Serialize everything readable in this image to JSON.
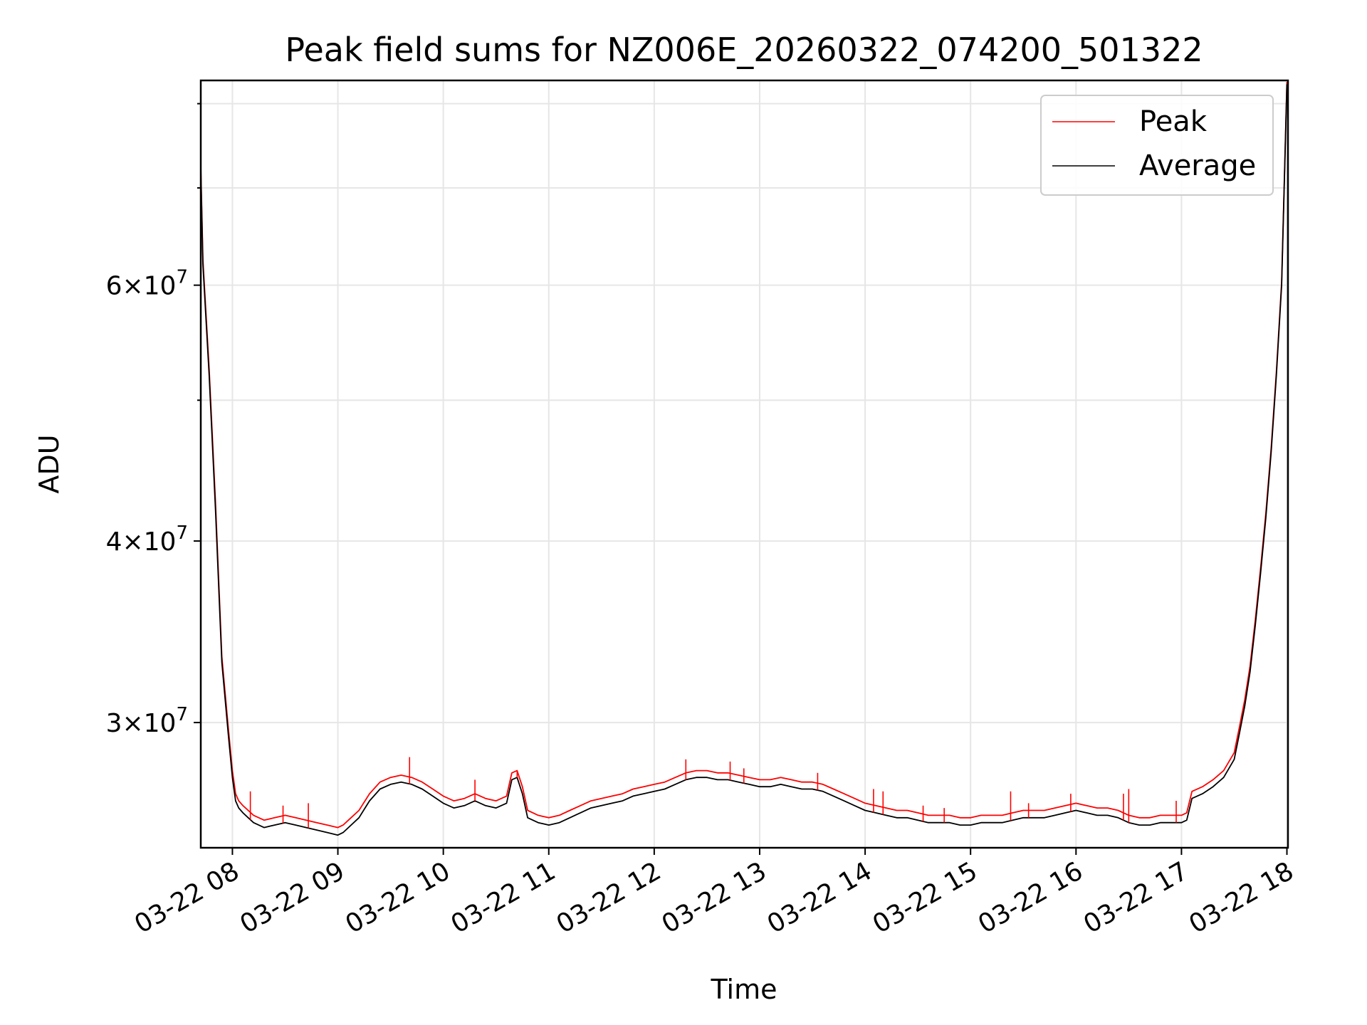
{
  "chart_data": {
    "type": "line",
    "title": "Peak field sums for NZ006E_20260322_074200_501322",
    "xlabel": "Time",
    "ylabel": "ADU",
    "x_ticks": [
      "03-22 08",
      "03-22 09",
      "03-22 10",
      "03-22 11",
      "03-22 12",
      "03-22 13",
      "03-22 14",
      "03-22 15",
      "03-22 16",
      "03-22 17",
      "03-22 18"
    ],
    "x_tick_hours": [
      8,
      9,
      10,
      11,
      12,
      13,
      14,
      15,
      16,
      17,
      18
    ],
    "xlim_hours": [
      7.7,
      18.01
    ],
    "y_scale": "log",
    "ylim": [
      24600000,
      83000000
    ],
    "y_major_ticks": [
      {
        "value": 30000000,
        "mantissa": "3",
        "exponent": "7"
      },
      {
        "value": 40000000,
        "mantissa": "4",
        "exponent": "7"
      },
      {
        "value": 60000000,
        "mantissa": "6",
        "exponent": "7"
      }
    ],
    "y_minor_ticks": [
      50000000,
      70000000,
      80000000
    ],
    "grid": true,
    "legend": {
      "placement": "top-right",
      "entries": [
        {
          "name": "Peak",
          "color": "#ff0000"
        },
        {
          "name": "Average",
          "color": "#000000"
        }
      ]
    },
    "series": [
      {
        "name": "Average",
        "color": "#000000",
        "x_hours": [
          7.7,
          7.72,
          7.78,
          7.84,
          7.9,
          7.96,
          8.0,
          8.03,
          8.06,
          8.1,
          8.15,
          8.2,
          8.3,
          8.4,
          8.5,
          8.6,
          8.7,
          8.8,
          8.9,
          9.0,
          9.05,
          9.1,
          9.2,
          9.3,
          9.4,
          9.5,
          9.6,
          9.7,
          9.8,
          9.9,
          10.0,
          10.1,
          10.2,
          10.3,
          10.4,
          10.5,
          10.6,
          10.65,
          10.7,
          10.75,
          10.8,
          10.9,
          11.0,
          11.1,
          11.2,
          11.3,
          11.4,
          11.5,
          11.6,
          11.7,
          11.8,
          11.9,
          12.0,
          12.1,
          12.2,
          12.3,
          12.4,
          12.5,
          12.6,
          12.7,
          12.8,
          12.9,
          13.0,
          13.1,
          13.2,
          13.3,
          13.4,
          13.5,
          13.6,
          13.7,
          13.8,
          13.9,
          14.0,
          14.1,
          14.2,
          14.3,
          14.4,
          14.5,
          14.6,
          14.7,
          14.8,
          14.9,
          15.0,
          15.1,
          15.2,
          15.3,
          15.4,
          15.5,
          15.6,
          15.7,
          15.8,
          15.9,
          16.0,
          16.1,
          16.2,
          16.3,
          16.4,
          16.5,
          16.6,
          16.7,
          16.8,
          16.9,
          17.0,
          17.05,
          17.1,
          17.2,
          17.3,
          17.4,
          17.5,
          17.55,
          17.6,
          17.65,
          17.7,
          17.75,
          17.8,
          17.85,
          17.9,
          17.95,
          18.0
        ],
        "values": [
          72000000,
          62000000,
          52000000,
          42000000,
          33000000,
          29500000,
          27500000,
          26500000,
          26200000,
          26000000,
          25800000,
          25600000,
          25400000,
          25500000,
          25600000,
          25500000,
          25400000,
          25300000,
          25200000,
          25100000,
          25200000,
          25400000,
          25800000,
          26500000,
          27000000,
          27200000,
          27300000,
          27200000,
          27000000,
          26700000,
          26400000,
          26200000,
          26300000,
          26500000,
          26300000,
          26200000,
          26400000,
          27400000,
          27500000,
          26800000,
          25800000,
          25600000,
          25500000,
          25600000,
          25800000,
          26000000,
          26200000,
          26300000,
          26400000,
          26500000,
          26700000,
          26800000,
          26900000,
          27000000,
          27200000,
          27400000,
          27500000,
          27500000,
          27400000,
          27400000,
          27300000,
          27200000,
          27100000,
          27100000,
          27200000,
          27100000,
          27000000,
          27000000,
          26900000,
          26700000,
          26500000,
          26300000,
          26100000,
          26000000,
          25900000,
          25800000,
          25800000,
          25700000,
          25600000,
          25600000,
          25600000,
          25500000,
          25500000,
          25600000,
          25600000,
          25600000,
          25700000,
          25800000,
          25800000,
          25800000,
          25900000,
          26000000,
          26100000,
          26000000,
          25900000,
          25900000,
          25800000,
          25600000,
          25500000,
          25500000,
          25600000,
          25600000,
          25600000,
          25700000,
          26600000,
          26800000,
          27100000,
          27500000,
          28300000,
          29500000,
          30800000,
          32500000,
          35000000,
          38000000,
          41500000,
          46000000,
          52000000,
          60000000,
          82500000
        ]
      },
      {
        "name": "Peak",
        "color": "#ff0000",
        "x_hours": [
          7.7,
          7.72,
          7.78,
          7.84,
          7.9,
          7.96,
          8.0,
          8.03,
          8.06,
          8.1,
          8.15,
          8.2,
          8.3,
          8.4,
          8.5,
          8.6,
          8.7,
          8.8,
          8.9,
          9.0,
          9.05,
          9.1,
          9.2,
          9.3,
          9.4,
          9.5,
          9.6,
          9.7,
          9.8,
          9.9,
          10.0,
          10.1,
          10.2,
          10.3,
          10.4,
          10.5,
          10.6,
          10.65,
          10.7,
          10.75,
          10.8,
          10.9,
          11.0,
          11.1,
          11.2,
          11.3,
          11.4,
          11.5,
          11.6,
          11.7,
          11.8,
          11.9,
          12.0,
          12.1,
          12.2,
          12.3,
          12.4,
          12.5,
          12.6,
          12.7,
          12.8,
          12.9,
          13.0,
          13.1,
          13.2,
          13.3,
          13.4,
          13.5,
          13.6,
          13.7,
          13.8,
          13.9,
          14.0,
          14.1,
          14.2,
          14.3,
          14.4,
          14.5,
          14.6,
          14.7,
          14.8,
          14.9,
          15.0,
          15.1,
          15.2,
          15.3,
          15.4,
          15.5,
          15.6,
          15.7,
          15.8,
          15.9,
          16.0,
          16.1,
          16.2,
          16.3,
          16.4,
          16.5,
          16.6,
          16.7,
          16.8,
          16.9,
          17.0,
          17.05,
          17.1,
          17.2,
          17.3,
          17.4,
          17.5,
          17.55,
          17.6,
          17.65,
          17.7,
          17.75,
          17.8,
          17.85,
          17.9,
          17.95,
          18.0
        ],
        "values": [
          72500000,
          62500000,
          52500000,
          42500000,
          33300000,
          29800000,
          27800000,
          26800000,
          26500000,
          26300000,
          26100000,
          25900000,
          25700000,
          25800000,
          25900000,
          25800000,
          25700000,
          25600000,
          25500000,
          25400000,
          25500000,
          25700000,
          26100000,
          26800000,
          27300000,
          27500000,
          27600000,
          27500000,
          27300000,
          27000000,
          26700000,
          26500000,
          26600000,
          26800000,
          26600000,
          26500000,
          26700000,
          27700000,
          27800000,
          27100000,
          26100000,
          25900000,
          25800000,
          25900000,
          26100000,
          26300000,
          26500000,
          26600000,
          26700000,
          26800000,
          27000000,
          27100000,
          27200000,
          27300000,
          27500000,
          27700000,
          27800000,
          27800000,
          27700000,
          27700000,
          27600000,
          27500000,
          27400000,
          27400000,
          27500000,
          27400000,
          27300000,
          27300000,
          27200000,
          27000000,
          26800000,
          26600000,
          26400000,
          26300000,
          26200000,
          26100000,
          26100000,
          26000000,
          25900000,
          25900000,
          25900000,
          25800000,
          25800000,
          25900000,
          25900000,
          25900000,
          26000000,
          26100000,
          26100000,
          26100000,
          26200000,
          26300000,
          26400000,
          26300000,
          26200000,
          26200000,
          26100000,
          25900000,
          25800000,
          25800000,
          25900000,
          25900000,
          25900000,
          26000000,
          26900000,
          27100000,
          27400000,
          27800000,
          28600000,
          29800000,
          31100000,
          32800000,
          35300000,
          38300000,
          41800000,
          46300000,
          52300000,
          60300000,
          82800000
        ]
      }
    ],
    "peak_spikes": [
      {
        "x_hours": 8.17,
        "value": 26900000
      },
      {
        "x_hours": 8.48,
        "value": 26300000
      },
      {
        "x_hours": 8.72,
        "value": 26400000
      },
      {
        "x_hours": 9.68,
        "value": 28400000
      },
      {
        "x_hours": 10.3,
        "value": 27400000
      },
      {
        "x_hours": 10.7,
        "value": 27800000
      },
      {
        "x_hours": 12.3,
        "value": 28300000
      },
      {
        "x_hours": 12.72,
        "value": 28200000
      },
      {
        "x_hours": 12.85,
        "value": 27900000
      },
      {
        "x_hours": 13.55,
        "value": 27700000
      },
      {
        "x_hours": 14.08,
        "value": 27000000
      },
      {
        "x_hours": 14.17,
        "value": 26900000
      },
      {
        "x_hours": 14.55,
        "value": 26300000
      },
      {
        "x_hours": 14.75,
        "value": 26200000
      },
      {
        "x_hours": 15.38,
        "value": 26900000
      },
      {
        "x_hours": 15.55,
        "value": 26400000
      },
      {
        "x_hours": 15.95,
        "value": 26800000
      },
      {
        "x_hours": 16.45,
        "value": 26800000
      },
      {
        "x_hours": 16.5,
        "value": 27000000
      },
      {
        "x_hours": 16.95,
        "value": 26500000
      }
    ]
  }
}
